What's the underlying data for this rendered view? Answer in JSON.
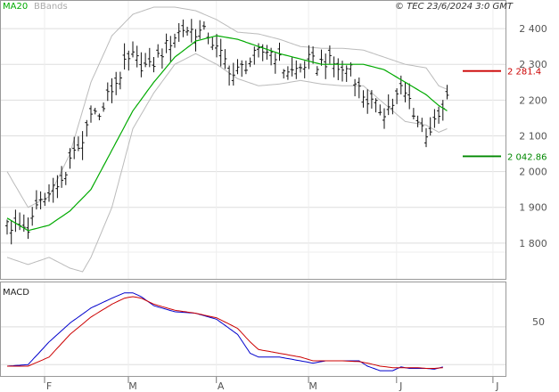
{
  "header": {
    "ma_label": "MA20",
    "bb_label": "BBands",
    "copyright": "© TEC 23/6/2024 3:0 GMT"
  },
  "macd_panel": {
    "label": "MACD",
    "tick": "50"
  },
  "chart_data": [
    {
      "type": "ohlc",
      "panel": "price",
      "title": "",
      "yticks": [
        1800,
        1900,
        2000,
        2100,
        2200,
        2300,
        2400
      ],
      "ytick_labels": [
        "1 800",
        "1 900",
        "2 000",
        "2 100",
        "2 200",
        "2 300",
        "2 400"
      ],
      "ylim": [
        1700,
        2480
      ],
      "x_months": [
        "F",
        "M",
        "A",
        "M",
        "J",
        "J"
      ],
      "x_month_index": [
        0,
        20,
        41,
        63,
        84,
        107
      ],
      "levels": [
        {
          "name": "resistance",
          "value": 2281.4,
          "label": "2 281.4",
          "color": "#cc0000"
        },
        {
          "name": "support",
          "value": 2042.86,
          "label": "2 042.86",
          "color": "#008800"
        }
      ],
      "series": [
        {
          "name": "MA20",
          "color": "#00aa00",
          "anchors": [
            [
              -10,
              1870
            ],
            [
              -5,
              1835
            ],
            [
              0,
              1850
            ],
            [
              5,
              1890
            ],
            [
              10,
              1950
            ],
            [
              15,
              2060
            ],
            [
              20,
              2170
            ],
            [
              25,
              2250
            ],
            [
              30,
              2320
            ],
            [
              35,
              2365
            ],
            [
              40,
              2380
            ],
            [
              45,
              2370
            ],
            [
              50,
              2350
            ],
            [
              55,
              2330
            ],
            [
              60,
              2315
            ],
            [
              65,
              2300
            ],
            [
              70,
              2300
            ],
            [
              75,
              2300
            ],
            [
              80,
              2285
            ],
            [
              85,
              2250
            ],
            [
              90,
              2215
            ],
            [
              93,
              2185
            ],
            [
              95,
              2170
            ]
          ]
        },
        {
          "name": "BB upper",
          "color": "#bbbbbb",
          "anchors": [
            [
              -10,
              2000
            ],
            [
              -5,
              1900
            ],
            [
              0,
              1930
            ],
            [
              5,
              2050
            ],
            [
              10,
              2250
            ],
            [
              15,
              2380
            ],
            [
              20,
              2440
            ],
            [
              25,
              2460
            ],
            [
              30,
              2460
            ],
            [
              35,
              2450
            ],
            [
              40,
              2425
            ],
            [
              45,
              2390
            ],
            [
              50,
              2385
            ],
            [
              55,
              2370
            ],
            [
              60,
              2350
            ],
            [
              65,
              2345
            ],
            [
              70,
              2345
            ],
            [
              75,
              2340
            ],
            [
              80,
              2320
            ],
            [
              85,
              2300
            ],
            [
              90,
              2290
            ],
            [
              93,
              2240
            ],
            [
              95,
              2230
            ]
          ]
        },
        {
          "name": "BB lower",
          "color": "#bbbbbb",
          "anchors": [
            [
              -10,
              1760
            ],
            [
              -5,
              1740
            ],
            [
              0,
              1760
            ],
            [
              5,
              1730
            ],
            [
              8,
              1720
            ],
            [
              10,
              1760
            ],
            [
              15,
              1900
            ],
            [
              20,
              2120
            ],
            [
              25,
              2220
            ],
            [
              30,
              2300
            ],
            [
              35,
              2330
            ],
            [
              40,
              2300
            ],
            [
              45,
              2260
            ],
            [
              50,
              2240
            ],
            [
              55,
              2245
            ],
            [
              60,
              2255
            ],
            [
              65,
              2245
            ],
            [
              70,
              2240
            ],
            [
              75,
              2240
            ],
            [
              80,
              2190
            ],
            [
              85,
              2140
            ],
            [
              90,
              2130
            ],
            [
              93,
              2110
            ],
            [
              95,
              2120
            ]
          ]
        }
      ],
      "ohlc_anchors": [
        [
          -10,
          1850
        ],
        [
          -7,
          1835
        ],
        [
          -5,
          1825
        ],
        [
          -3,
          1900
        ],
        [
          0,
          1950
        ],
        [
          2,
          1955
        ],
        [
          4,
          2000
        ],
        [
          6,
          2050
        ],
        [
          8,
          2080
        ],
        [
          10,
          2180
        ],
        [
          12,
          2150
        ],
        [
          14,
          2210
        ],
        [
          16,
          2250
        ],
        [
          18,
          2295
        ],
        [
          20,
          2320
        ],
        [
          22,
          2300
        ],
        [
          24,
          2290
        ],
        [
          26,
          2320
        ],
        [
          28,
          2350
        ],
        [
          30,
          2380
        ],
        [
          32,
          2400
        ],
        [
          34,
          2395
        ],
        [
          36,
          2390
        ],
        [
          38,
          2385
        ],
        [
          40,
          2340
        ],
        [
          42,
          2310
        ],
        [
          44,
          2270
        ],
        [
          46,
          2290
        ],
        [
          48,
          2310
        ],
        [
          50,
          2330
        ],
        [
          52,
          2340
        ],
        [
          54,
          2330
        ],
        [
          56,
          2290
        ],
        [
          58,
          2280
        ],
        [
          60,
          2290
        ],
        [
          62,
          2310
        ],
        [
          64,
          2300
        ],
        [
          66,
          2310
        ],
        [
          68,
          2300
        ],
        [
          70,
          2280
        ],
        [
          72,
          2300
        ],
        [
          74,
          2230
        ],
        [
          76,
          2200
        ],
        [
          78,
          2180
        ],
        [
          80,
          2170
        ],
        [
          82,
          2190
        ],
        [
          84,
          2230
        ],
        [
          86,
          2200
        ],
        [
          88,
          2140
        ],
        [
          90,
          2110
        ],
        [
          92,
          2130
        ],
        [
          94,
          2170
        ],
        [
          95,
          2200
        ]
      ]
    },
    {
      "type": "line",
      "panel": "macd",
      "title": "",
      "ylim": [
        -15,
        110
      ],
      "yticks": [
        50
      ],
      "series": [
        {
          "name": "MACD",
          "color": "#0000cc",
          "anchors": [
            [
              -10,
              -2
            ],
            [
              -5,
              0
            ],
            [
              0,
              30
            ],
            [
              5,
              55
            ],
            [
              10,
              75
            ],
            [
              15,
              88
            ],
            [
              18,
              95
            ],
            [
              20,
              95
            ],
            [
              22,
              90
            ],
            [
              25,
              78
            ],
            [
              30,
              70
            ],
            [
              35,
              68
            ],
            [
              40,
              60
            ],
            [
              45,
              40
            ],
            [
              48,
              15
            ],
            [
              50,
              10
            ],
            [
              55,
              10
            ],
            [
              60,
              5
            ],
            [
              63,
              2
            ],
            [
              66,
              5
            ],
            [
              70,
              5
            ],
            [
              74,
              5
            ],
            [
              76,
              -2
            ],
            [
              79,
              -8
            ],
            [
              82,
              -8
            ],
            [
              84,
              -3
            ],
            [
              86,
              -5
            ],
            [
              88,
              -5
            ],
            [
              90,
              -5
            ],
            [
              92,
              -6
            ],
            [
              94,
              -3
            ]
          ]
        },
        {
          "name": "Signal",
          "color": "#cc0000",
          "anchors": [
            [
              -10,
              -2
            ],
            [
              -5,
              -2
            ],
            [
              0,
              10
            ],
            [
              5,
              40
            ],
            [
              10,
              63
            ],
            [
              15,
              80
            ],
            [
              18,
              88
            ],
            [
              20,
              90
            ],
            [
              22,
              88
            ],
            [
              25,
              80
            ],
            [
              30,
              72
            ],
            [
              35,
              68
            ],
            [
              40,
              62
            ],
            [
              45,
              48
            ],
            [
              48,
              30
            ],
            [
              50,
              20
            ],
            [
              55,
              15
            ],
            [
              60,
              10
            ],
            [
              63,
              5
            ],
            [
              66,
              5
            ],
            [
              70,
              5
            ],
            [
              74,
              4
            ],
            [
              76,
              2
            ],
            [
              79,
              -2
            ],
            [
              82,
              -4
            ],
            [
              84,
              -4
            ],
            [
              86,
              -4
            ],
            [
              88,
              -4
            ],
            [
              90,
              -5
            ],
            [
              92,
              -5
            ],
            [
              94,
              -4
            ]
          ]
        }
      ]
    }
  ]
}
